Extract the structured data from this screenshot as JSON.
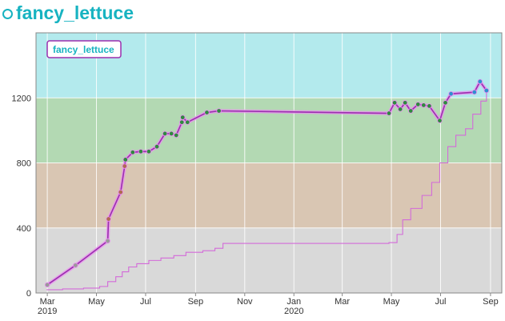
{
  "header": {
    "title": "fancy_lettuce",
    "icon": "circle-outline-icon"
  },
  "colors": {
    "accent": "#17b3c1",
    "band_top": "#b3eaed",
    "band_green": "#b3d9b3",
    "band_tan": "#d9c6b3",
    "band_gray": "#d9d9d9",
    "series_line": "#9b2fae",
    "series_glow": "#e98ef0",
    "point_green": "#2e8b3e",
    "point_blue": "#2f8fd0",
    "line2": "#d36ad9"
  },
  "chart_data": {
    "type": "line",
    "title": "",
    "xlabel": "",
    "ylabel": "",
    "x_axis": {
      "ticks": [
        {
          "label": "Mar",
          "sub": "2019",
          "date": "2019-03-01"
        },
        {
          "label": "May",
          "sub": "",
          "date": "2019-05-01"
        },
        {
          "label": "Jul",
          "sub": "",
          "date": "2019-07-01"
        },
        {
          "label": "Sep",
          "sub": "",
          "date": "2019-09-01"
        },
        {
          "label": "Nov",
          "sub": "",
          "date": "2019-11-01"
        },
        {
          "label": "Jan",
          "sub": "2020",
          "date": "2020-01-01"
        },
        {
          "label": "Mar",
          "sub": "",
          "date": "2020-03-01"
        },
        {
          "label": "May",
          "sub": "",
          "date": "2020-05-01"
        },
        {
          "label": "Jul",
          "sub": "",
          "date": "2020-07-01"
        },
        {
          "label": "Sep",
          "sub": "",
          "date": "2020-09-01"
        }
      ],
      "range": [
        "2019-02-15",
        "2020-09-15"
      ]
    },
    "y_axis": {
      "ticks": [
        0,
        400,
        800,
        1200
      ],
      "range": [
        0,
        1600
      ]
    },
    "bands": [
      {
        "from": 0,
        "to": 400,
        "color": "#d9d9d9"
      },
      {
        "from": 400,
        "to": 800,
        "color": "#d9c6b3"
      },
      {
        "from": 800,
        "to": 1200,
        "color": "#b3d9b3"
      },
      {
        "from": 1200,
        "to": 1600,
        "color": "#b3eaed"
      }
    ],
    "legend": {
      "position": "top-left",
      "entries": [
        "fancy_lettuce"
      ]
    },
    "series": [
      {
        "name": "fancy_lettuce",
        "points": [
          {
            "x": "2019-03-01",
            "y": 50,
            "color": "gray"
          },
          {
            "x": "2019-04-05",
            "y": 170,
            "color": "gray"
          },
          {
            "x": "2019-05-15",
            "y": 320,
            "color": "gray"
          },
          {
            "x": "2019-05-16",
            "y": 455,
            "color": "tan"
          },
          {
            "x": "2019-05-31",
            "y": 620,
            "color": "tan"
          },
          {
            "x": "2019-06-05",
            "y": 780,
            "color": "tan"
          },
          {
            "x": "2019-06-06",
            "y": 820,
            "color": "green"
          },
          {
            "x": "2019-06-15",
            "y": 865,
            "color": "green"
          },
          {
            "x": "2019-06-25",
            "y": 870,
            "color": "green"
          },
          {
            "x": "2019-07-05",
            "y": 870,
            "color": "green"
          },
          {
            "x": "2019-07-15",
            "y": 900,
            "color": "green"
          },
          {
            "x": "2019-07-25",
            "y": 980,
            "color": "green"
          },
          {
            "x": "2019-08-02",
            "y": 980,
            "color": "green"
          },
          {
            "x": "2019-08-08",
            "y": 970,
            "color": "green"
          },
          {
            "x": "2019-08-15",
            "y": 1050,
            "color": "green"
          },
          {
            "x": "2019-08-16",
            "y": 1080,
            "color": "green"
          },
          {
            "x": "2019-08-22",
            "y": 1050,
            "color": "green"
          },
          {
            "x": "2019-09-15",
            "y": 1110,
            "color": "green"
          },
          {
            "x": "2019-09-30",
            "y": 1120,
            "color": "green"
          },
          {
            "x": "2020-04-28",
            "y": 1105,
            "color": "green"
          },
          {
            "x": "2020-05-05",
            "y": 1170,
            "color": "green"
          },
          {
            "x": "2020-05-12",
            "y": 1130,
            "color": "green"
          },
          {
            "x": "2020-05-18",
            "y": 1170,
            "color": "green"
          },
          {
            "x": "2020-05-25",
            "y": 1120,
            "color": "green"
          },
          {
            "x": "2020-06-03",
            "y": 1160,
            "color": "green"
          },
          {
            "x": "2020-06-10",
            "y": 1155,
            "color": "green"
          },
          {
            "x": "2020-06-17",
            "y": 1150,
            "color": "green"
          },
          {
            "x": "2020-06-30",
            "y": 1060,
            "color": "green"
          },
          {
            "x": "2020-07-07",
            "y": 1170,
            "color": "green"
          },
          {
            "x": "2020-07-14",
            "y": 1225,
            "color": "blue"
          },
          {
            "x": "2020-08-12",
            "y": 1235,
            "color": "blue"
          },
          {
            "x": "2020-08-19",
            "y": 1300,
            "color": "blue"
          },
          {
            "x": "2020-08-27",
            "y": 1245,
            "color": "blue"
          }
        ]
      },
      {
        "name": "",
        "style": "thin-step",
        "points": [
          {
            "x": "2019-02-28",
            "y": 20
          },
          {
            "x": "2019-03-20",
            "y": 25
          },
          {
            "x": "2019-04-15",
            "y": 30
          },
          {
            "x": "2019-05-05",
            "y": 40
          },
          {
            "x": "2019-05-15",
            "y": 70
          },
          {
            "x": "2019-05-25",
            "y": 100
          },
          {
            "x": "2019-06-02",
            "y": 130
          },
          {
            "x": "2019-06-10",
            "y": 160
          },
          {
            "x": "2019-06-20",
            "y": 180
          },
          {
            "x": "2019-07-05",
            "y": 200
          },
          {
            "x": "2019-07-20",
            "y": 215
          },
          {
            "x": "2019-08-05",
            "y": 230
          },
          {
            "x": "2019-08-20",
            "y": 250
          },
          {
            "x": "2019-09-10",
            "y": 260
          },
          {
            "x": "2019-09-25",
            "y": 275
          },
          {
            "x": "2019-10-05",
            "y": 305
          },
          {
            "x": "2020-04-28",
            "y": 310
          },
          {
            "x": "2020-05-08",
            "y": 360
          },
          {
            "x": "2020-05-15",
            "y": 450
          },
          {
            "x": "2020-05-25",
            "y": 520
          },
          {
            "x": "2020-06-08",
            "y": 600
          },
          {
            "x": "2020-06-20",
            "y": 680
          },
          {
            "x": "2020-06-30",
            "y": 800
          },
          {
            "x": "2020-07-10",
            "y": 900
          },
          {
            "x": "2020-07-20",
            "y": 970
          },
          {
            "x": "2020-08-01",
            "y": 1010
          },
          {
            "x": "2020-08-10",
            "y": 1100
          },
          {
            "x": "2020-08-20",
            "y": 1180
          },
          {
            "x": "2020-08-27",
            "y": 1240
          }
        ]
      }
    ]
  }
}
